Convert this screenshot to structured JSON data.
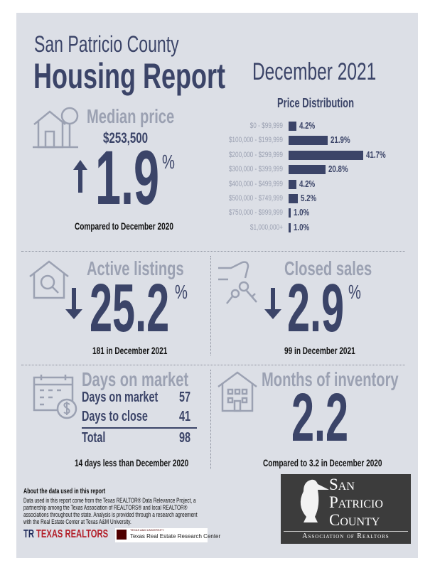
{
  "header": {
    "county": "San Patricio County",
    "title": "Housing Report",
    "period": "December 2021"
  },
  "median": {
    "label": "Median price",
    "price": "$253,500",
    "change": "1.9",
    "pct": "%",
    "direction": "up",
    "note": "Compared to December 2020"
  },
  "chart_data": {
    "type": "bar",
    "title": "Price Distribution",
    "categories": [
      "$0 - $99,999",
      "$100,000 - $199,999",
      "$200,000 - $299,999",
      "$300,000 - $399,999",
      "$400,000 - $499,999",
      "$500,000 - $749,999",
      "$750,000 - $999,999",
      "$1,000,000+"
    ],
    "values": [
      4.2,
      21.9,
      41.7,
      20.8,
      4.2,
      5.2,
      1.0,
      1.0
    ],
    "labels": [
      "4.2%",
      "21.9%",
      "41.7%",
      "20.8%",
      "4.2%",
      "5.2%",
      "1.0%",
      "1.0%"
    ],
    "orientation": "horizontal"
  },
  "active": {
    "label": "Active listings",
    "change": "25.2",
    "pct": "%",
    "direction": "down",
    "note": "181 in December 2021"
  },
  "closed": {
    "label": "Closed sales",
    "change": "2.9",
    "pct": "%",
    "direction": "down",
    "note": "99 in December 2021"
  },
  "dom": {
    "label": "Days on market",
    "rows": [
      {
        "k": "Days on market",
        "v": "57"
      },
      {
        "k": "Days to close",
        "v": "41"
      }
    ],
    "total_k": "Total",
    "total_v": "98",
    "note": "14 days less than December 2020"
  },
  "inventory": {
    "label": "Months of inventory",
    "value": "2.2",
    "note": "Compared to 3.2 in December 2020"
  },
  "footer": {
    "about_title": "About the data used in this report",
    "about_text": "Data used in this report come from the Texas REALTOR® Data Relevance Project, a partnership among the Texas Association of REALTORS® and local REALTOR® associations throughout the state. Analysis is provided through a research agreement with the Real Estate Center at Texas A&M University.",
    "texas_realtors": "TEXAS REALTORS",
    "tamu_small": "TEXAS A&M UNIVERSITY",
    "tamu": "Texas Real Estate Research Center",
    "assoc_lines": [
      "San",
      "Patricio",
      "County"
    ],
    "assoc_sub": "Association of Realtors"
  },
  "colors": {
    "navy": "#3b4468",
    "gray": "#9ba1b2",
    "bg": "#dcdfe6"
  }
}
